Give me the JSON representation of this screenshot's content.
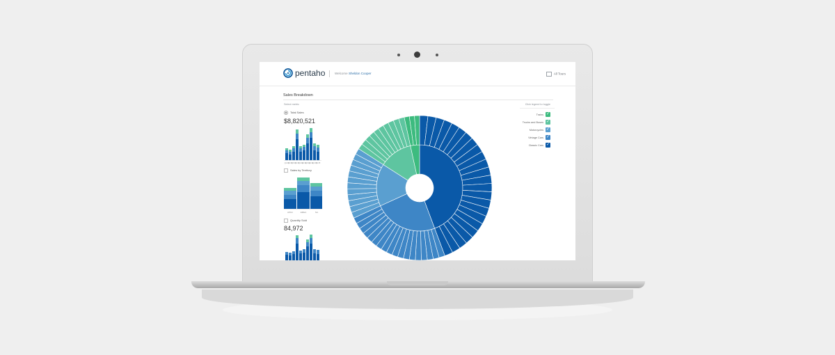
{
  "header": {
    "brand": "pentaho",
    "welcome_prefix": "Welcome",
    "user_name": "Sheldon Cooper",
    "tours_label": "All Tours"
  },
  "page": {
    "title": "Sales Breakdown",
    "select_metric_label": "Select metric",
    "toggle_hint": "Click legend to toggle"
  },
  "metrics": [
    {
      "label": "Total Sales",
      "selected": true,
      "value": "$8,820,521",
      "ticks": [
        "Q1 03",
        "Q2 03",
        "Q3 03",
        "Q4 03",
        "Q1 04",
        "Q2 04",
        "Q3 04",
        "Q4 04",
        "Q1 05",
        "Q2 05"
      ]
    },
    {
      "label": "Sales by Territory",
      "selected": false,
      "ticks": [
        "APAC",
        "EMEA",
        "NA"
      ]
    },
    {
      "label": "Quantity Sold",
      "selected": false,
      "value": "84,972"
    }
  ],
  "legend": [
    {
      "label": "Trains",
      "color": "#3dbb7f"
    },
    {
      "label": "Trucks and Buses",
      "color": "#5ec5a0"
    },
    {
      "label": "Motorcycles",
      "color": "#5a9fd0"
    },
    {
      "label": "Vintage Cars",
      "color": "#3e86c6"
    },
    {
      "label": "Classic Cars",
      "color": "#0a59a8"
    }
  ],
  "chart_data": {
    "type": "sunburst",
    "categories": [
      "Classic Cars",
      "Vintage Cars",
      "Motorcycles",
      "Trucks and Buses",
      "Trains"
    ],
    "values": [
      39,
      21,
      14,
      11,
      3
    ],
    "colors": [
      "#0a59a8",
      "#3e86c6",
      "#5a9fd0",
      "#5ec5a0",
      "#3dbb7f"
    ],
    "outer_ring_segments": [
      24,
      18,
      12,
      10,
      3
    ]
  }
}
